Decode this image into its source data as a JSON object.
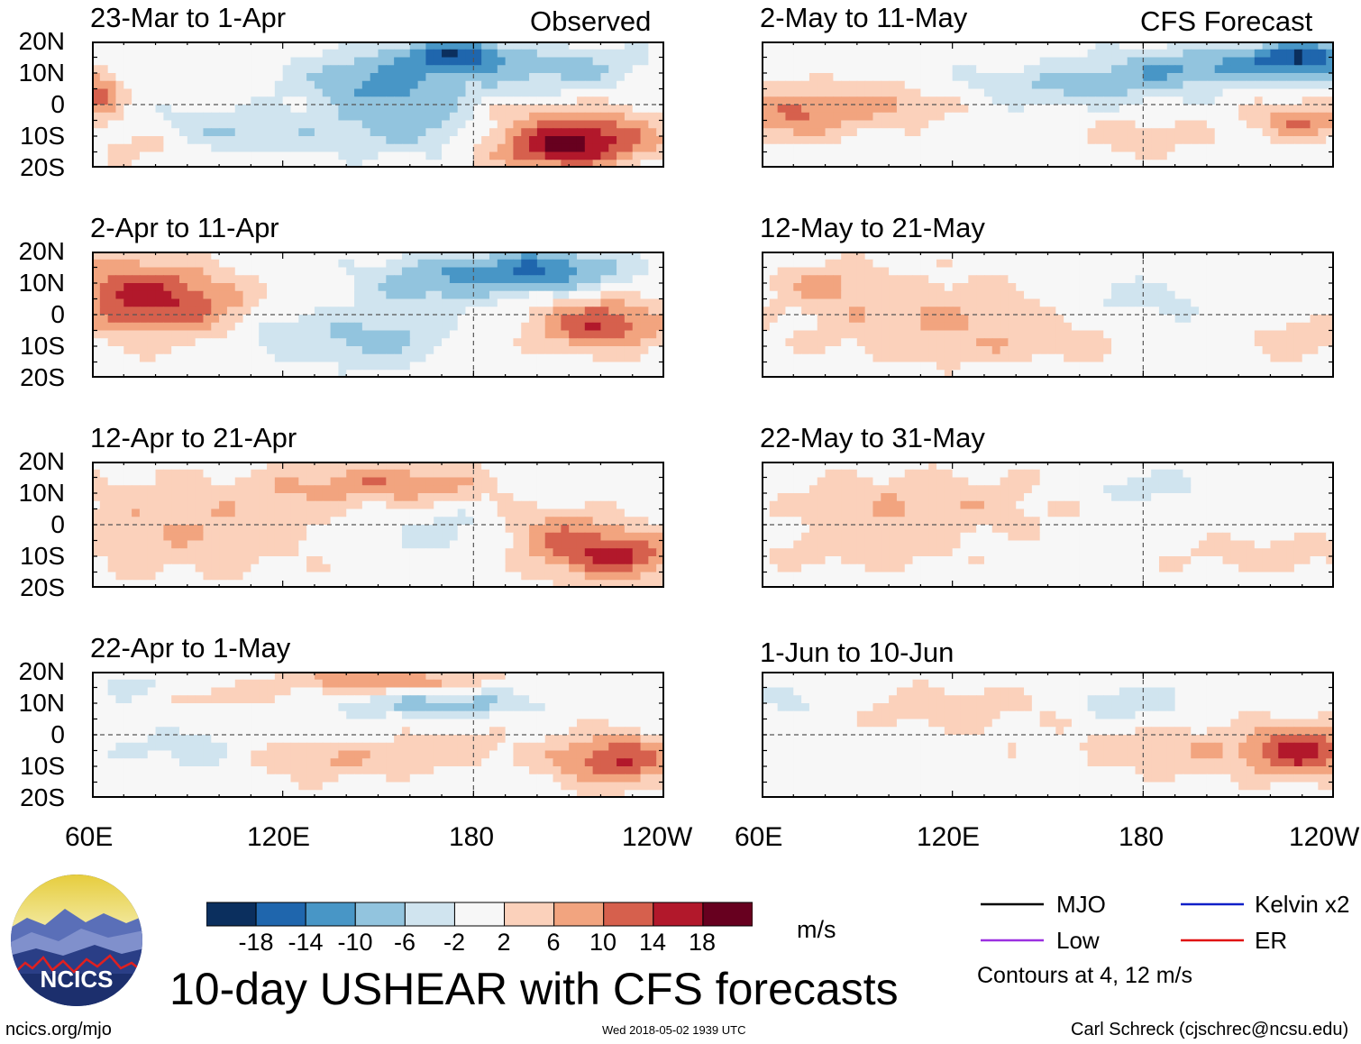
{
  "header": {
    "left_label": "Observed",
    "right_label": "CFS Forecast"
  },
  "panels": [
    {
      "title": "23-Mar to 1-Apr"
    },
    {
      "title": "2-Apr to 11-Apr"
    },
    {
      "title": "12-Apr to 21-Apr"
    },
    {
      "title": "22-Apr to 1-May"
    },
    {
      "title": "2-May to 11-May"
    },
    {
      "title": "12-May to 21-May"
    },
    {
      "title": "22-May to 31-May"
    },
    {
      "title": "1-Jun to 10-Jun"
    }
  ],
  "axes": {
    "lat_labels": [
      "20N",
      "10N",
      "0",
      "10S",
      "20S"
    ],
    "lon_labels": [
      "60E",
      "120E",
      "180",
      "120W"
    ]
  },
  "colorbar": {
    "labels": [
      "-18",
      "-14",
      "-10",
      "-6",
      "-2",
      "2",
      "6",
      "10",
      "14",
      "18"
    ],
    "colors": [
      "#0b2f5e",
      "#1f66ad",
      "#4896c6",
      "#92c4de",
      "#d0e4ef",
      "#f7f7f7",
      "#fbd1bb",
      "#f2a47f",
      "#d6604d",
      "#b2182b",
      "#67001f"
    ],
    "units": "m/s"
  },
  "legend": {
    "items": [
      {
        "label": "MJO",
        "color": "#000000"
      },
      {
        "label": "Kelvin x2",
        "color": "#1020c8"
      },
      {
        "label": "Low",
        "color": "#9b30e0"
      },
      {
        "label": "ER",
        "color": "#e01010"
      }
    ],
    "contours_note": "Contours at 4, 12 m/s"
  },
  "logo": {
    "text": "NCICS"
  },
  "main_title": "10-day USHEAR with CFS forecasts",
  "footer": {
    "left": "ncics.org/mjo",
    "center": "Wed 2018-05-02 1939 UTC",
    "right": "Carl Schreck (cjschrec@ncsu.edu)"
  },
  "chart_data": {
    "type": "heatmap",
    "variable": "10-day USHEAR anomaly",
    "units": "m/s",
    "lat_range": [
      -20,
      20
    ],
    "lon_range": [
      60,
      240
    ],
    "lon_ticks": [
      "60E",
      "120E",
      "180",
      "120W"
    ],
    "lat_ticks": [
      "20N",
      "10N",
      "0",
      "10S",
      "20S"
    ],
    "contour_levels": [
      4,
      12
    ],
    "panels": [
      {
        "period": "23-Mar to 1-Apr",
        "kind": "Observed",
        "blobs": [
          [
            63,
            3,
            6,
            8,
            12
          ],
          [
            75,
            -12,
            15,
            6,
            4
          ],
          [
            150,
            8,
            25,
            8,
            -10
          ],
          [
            175,
            16,
            18,
            5,
            -16
          ],
          [
            105,
            -8,
            30,
            6,
            -6
          ],
          [
            160,
            -5,
            25,
            10,
            -8
          ],
          [
            215,
            -10,
            25,
            8,
            14
          ],
          [
            205,
            -15,
            20,
            6,
            10
          ],
          [
            195,
            8,
            20,
            6,
            -4
          ],
          [
            215,
            12,
            20,
            6,
            -6
          ],
          [
            190,
            -3,
            15,
            5,
            3
          ]
        ]
      },
      {
        "period": "2-Apr to 11-Apr",
        "kind": "Observed",
        "blobs": [
          [
            72,
            6,
            20,
            12,
            14
          ],
          [
            95,
            3,
            18,
            10,
            8
          ],
          [
            200,
            14,
            25,
            7,
            -14
          ],
          [
            165,
            10,
            20,
            8,
            -8
          ],
          [
            150,
            -8,
            20,
            8,
            -8
          ],
          [
            220,
            -3,
            20,
            8,
            14
          ],
          [
            120,
            -5,
            15,
            8,
            -4
          ]
        ]
      },
      {
        "period": "12-Apr to 21-Apr",
        "kind": "Observed",
        "blobs": [
          [
            90,
            0,
            40,
            15,
            6
          ],
          [
            160,
            13,
            25,
            6,
            9
          ],
          [
            225,
            -10,
            20,
            8,
            14
          ],
          [
            205,
            -3,
            20,
            8,
            8
          ],
          [
            175,
            -3,
            20,
            8,
            -4
          ],
          [
            130,
            12,
            20,
            6,
            4
          ]
        ]
      },
      {
        "period": "22-Apr to 1-May",
        "kind": "Observed",
        "blobs": [
          [
            150,
            17,
            30,
            4,
            10
          ],
          [
            170,
            10,
            30,
            4,
            -8
          ],
          [
            225,
            -8,
            20,
            8,
            14
          ],
          [
            135,
            -8,
            25,
            6,
            6
          ],
          [
            100,
            12,
            15,
            4,
            4
          ],
          [
            175,
            -5,
            20,
            6,
            4
          ],
          [
            75,
            15,
            10,
            4,
            -4
          ],
          [
            90,
            -5,
            20,
            6,
            -4
          ]
        ]
      },
      {
        "period": "2-May to 11-May",
        "kind": "CFS Forecast",
        "blobs": [
          [
            230,
            15,
            15,
            6,
            -16
          ],
          [
            200,
            12,
            30,
            6,
            -10
          ],
          [
            160,
            6,
            30,
            6,
            -8
          ],
          [
            70,
            -3,
            20,
            8,
            10
          ],
          [
            100,
            0,
            20,
            6,
            6
          ],
          [
            230,
            -5,
            15,
            6,
            10
          ],
          [
            180,
            -10,
            20,
            6,
            4
          ]
        ]
      },
      {
        "period": "12-May to 21-May",
        "kind": "CFS Forecast",
        "blobs": [
          [
            110,
            0,
            40,
            12,
            6
          ],
          [
            180,
            5,
            20,
            6,
            -4
          ],
          [
            230,
            -8,
            15,
            6,
            5
          ],
          [
            80,
            10,
            15,
            6,
            6
          ],
          [
            140,
            -10,
            40,
            6,
            3
          ]
        ]
      },
      {
        "period": "22-May to 31-May",
        "kind": "CFS Forecast",
        "blobs": [
          [
            110,
            6,
            40,
            10,
            6
          ],
          [
            180,
            12,
            20,
            5,
            -4
          ],
          [
            220,
            -10,
            30,
            6,
            4
          ],
          [
            90,
            -8,
            30,
            6,
            4
          ]
        ]
      },
      {
        "period": "1-Jun to 10-Jun",
        "kind": "CFS Forecast",
        "blobs": [
          [
            230,
            -5,
            15,
            8,
            14
          ],
          [
            175,
            10,
            15,
            5,
            -6
          ],
          [
            120,
            8,
            30,
            8,
            4
          ],
          [
            200,
            -5,
            40,
            8,
            5
          ],
          [
            70,
            10,
            10,
            5,
            -3
          ]
        ]
      }
    ]
  }
}
